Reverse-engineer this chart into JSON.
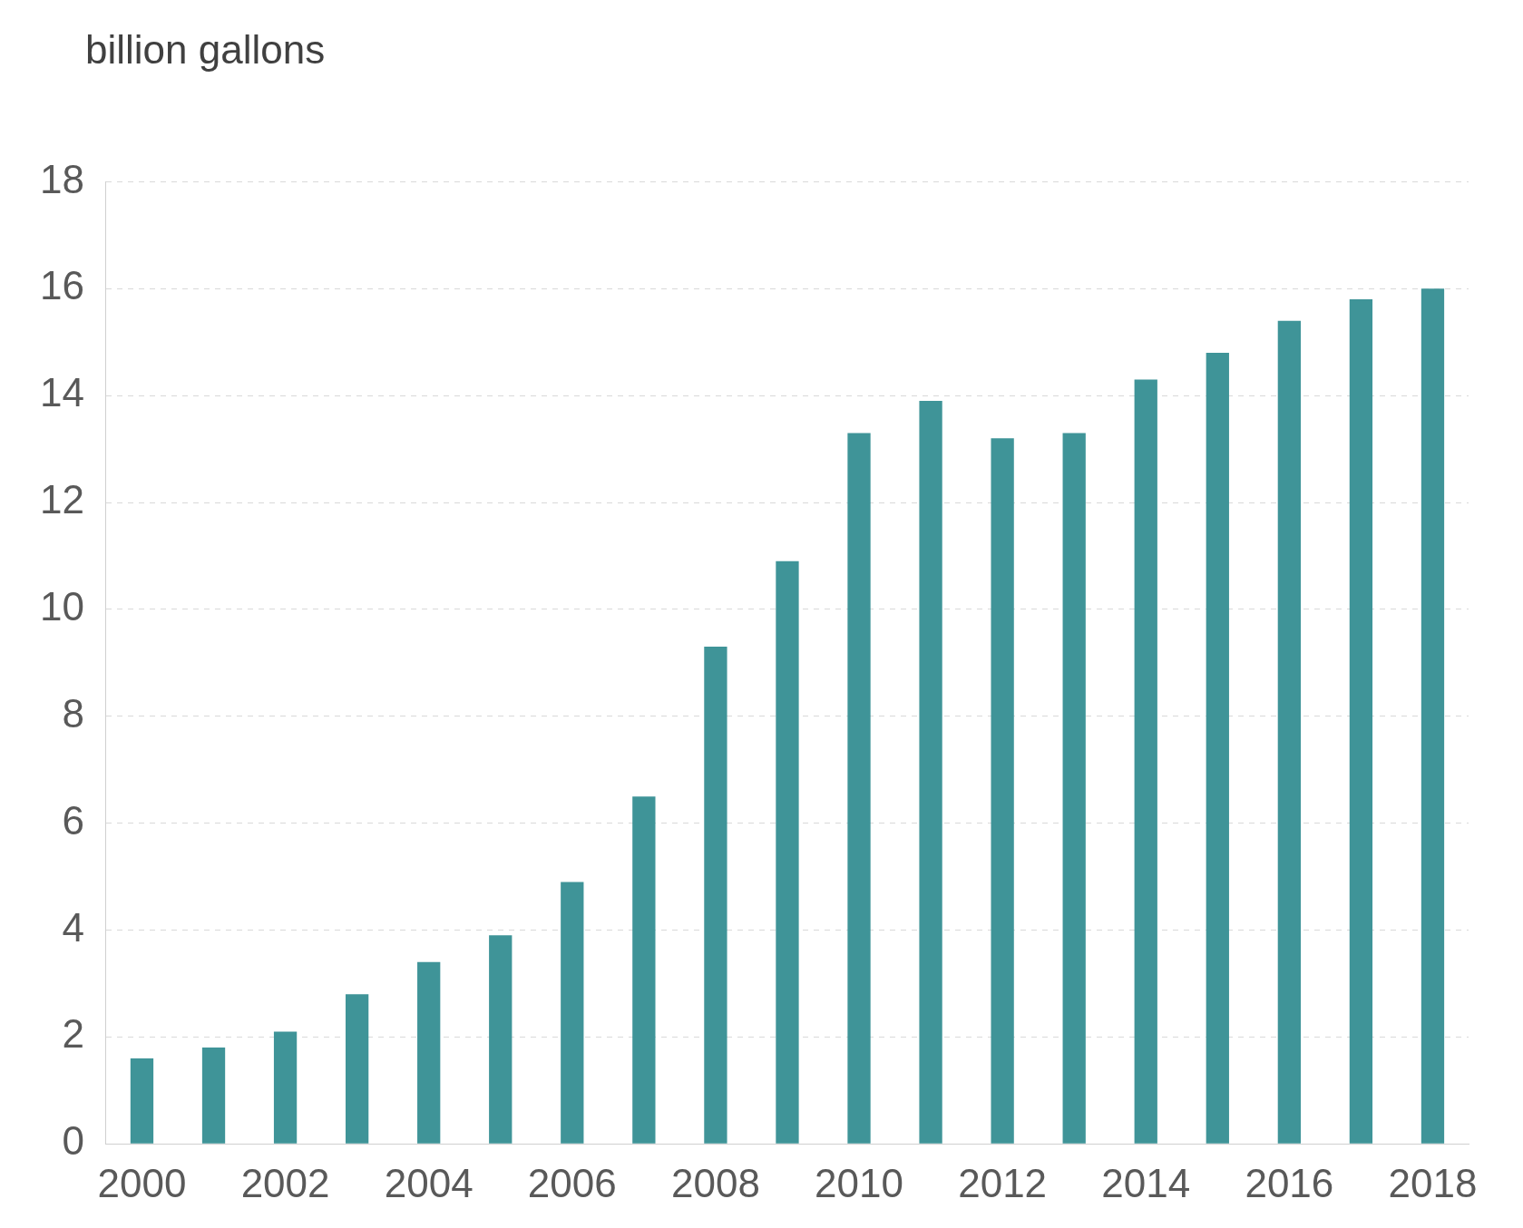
{
  "chart_data": {
    "type": "bar",
    "ylabel": "billion gallons",
    "categories": [
      "2000",
      null,
      "2002",
      null,
      "2004",
      null,
      "2006",
      null,
      "2008",
      null,
      "2010",
      null,
      "2012",
      null,
      "2014",
      null,
      "2016",
      null,
      "2018"
    ],
    "values": [
      1.6,
      1.8,
      2.1,
      2.8,
      3.4,
      3.9,
      4.9,
      6.5,
      9.3,
      10.9,
      13.3,
      13.9,
      13.2,
      13.3,
      14.3,
      14.8,
      15.4,
      15.8,
      16.0
    ],
    "color": "#3f9498",
    "ylim": [
      0,
      18
    ],
    "yticks": [
      0,
      2,
      4,
      6,
      8,
      10,
      12,
      14,
      16,
      18
    ],
    "grid": "y"
  }
}
